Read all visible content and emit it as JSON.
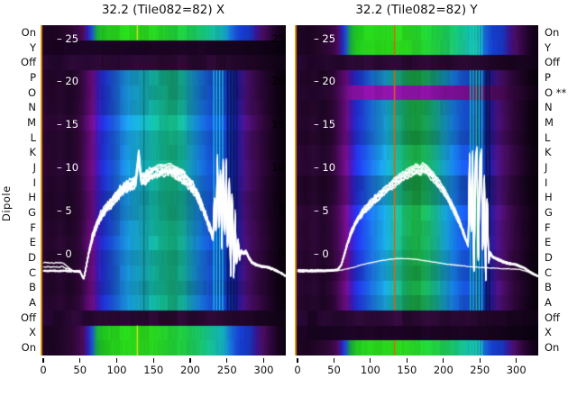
{
  "figure": {
    "titles": {
      "x_panel": "32.2 (Tile082=82) X",
      "y_panel": "32.2 (Tile082=82) Y"
    },
    "y_axis_label": "Dipole",
    "dipole_rows": [
      "On",
      "Y",
      "Off",
      "P",
      "O",
      "N",
      "M",
      "L",
      "K",
      "J",
      "I",
      "H",
      "G",
      "F",
      "E",
      "D",
      "C",
      "B",
      "A",
      "Off",
      "X",
      "On"
    ],
    "right_flag": {
      "row_index": 4,
      "text": "**"
    },
    "x_tick_labels": [
      "0",
      "50",
      "100",
      "150",
      "200",
      "250",
      "300"
    ],
    "x_tick_values": [
      0,
      50,
      100,
      150,
      200,
      250,
      300
    ],
    "inner_db_tick_labels": [
      "– 25",
      "– 20",
      "– 15",
      "– 10",
      "– 5",
      "– 0"
    ],
    "inner_db_tick_values": [
      25,
      20,
      15,
      10,
      5,
      0
    ],
    "left_panel_right_edge_labels": [
      "25",
      "20",
      "15",
      "10",
      "5",
      "0"
    ]
  },
  "colors": {
    "background": "#ffffff",
    "curve_white": "#ffffff",
    "axis_text": "#000000",
    "inner_tick_text": "#ffffff",
    "edge_column_yellow": "#e8a912",
    "edge_column_orange": "#c87a0e"
  },
  "heatmap_palette": {
    "band": [
      [
        0,
        "#2a0633"
      ],
      [
        10,
        "#220529"
      ],
      [
        22,
        "#2c0835"
      ],
      [
        34,
        "#1f0527"
      ],
      [
        46,
        "#2b0733"
      ],
      [
        53,
        "#3c0848"
      ],
      [
        60,
        "#570a6c"
      ],
      [
        67,
        "#6e0d86"
      ],
      [
        73,
        "#3d17b2"
      ],
      [
        81,
        "#2030d6"
      ],
      [
        93,
        "#1b52d8"
      ],
      [
        105,
        "#1a7ad8"
      ],
      [
        119,
        "#18a2dc"
      ],
      [
        133,
        "#16aec8"
      ],
      [
        147,
        "#13b2a4"
      ],
      [
        161,
        "#12b28c"
      ],
      [
        175,
        "#14ae7e"
      ],
      [
        189,
        "#13a890"
      ],
      [
        202,
        "#1494c2"
      ],
      [
        214,
        "#1672d6"
      ],
      [
        226,
        "#1654d4"
      ],
      [
        238,
        "#1848d2"
      ],
      [
        250,
        "#1340c8"
      ],
      [
        258,
        "#122ea8"
      ],
      [
        266,
        "#2a1694"
      ],
      [
        274,
        "#4c1184"
      ],
      [
        284,
        "#440c5e"
      ],
      [
        296,
        "#30073c"
      ],
      [
        308,
        "#1e0426"
      ],
      [
        320,
        "#0f0213"
      ],
      [
        330,
        "#070109"
      ]
    ],
    "band_gc": [
      [
        0,
        "#2a0633"
      ],
      [
        10,
        "#220529"
      ],
      [
        22,
        "#2c0835"
      ],
      [
        34,
        "#1f0527"
      ],
      [
        46,
        "#2b0733"
      ],
      [
        53,
        "#3c0848"
      ],
      [
        60,
        "#570a6c"
      ],
      [
        67,
        "#6e0d86"
      ],
      [
        73,
        "#3d17b2"
      ],
      [
        81,
        "#2030d6"
      ],
      [
        93,
        "#1b52d8"
      ],
      [
        105,
        "#1a7ad8"
      ],
      [
        119,
        "#18a2dc"
      ],
      [
        133,
        "#16ac9a"
      ],
      [
        147,
        "#17a75e"
      ],
      [
        161,
        "#18a33e"
      ],
      [
        175,
        "#17a354"
      ],
      [
        189,
        "#149c80"
      ],
      [
        202,
        "#1494c2"
      ],
      [
        214,
        "#1672d6"
      ],
      [
        226,
        "#1654d4"
      ],
      [
        238,
        "#1848d2"
      ],
      [
        250,
        "#1340c8"
      ],
      [
        258,
        "#122ea8"
      ],
      [
        266,
        "#2a1694"
      ],
      [
        274,
        "#4c1184"
      ],
      [
        284,
        "#440c5e"
      ],
      [
        296,
        "#30073c"
      ],
      [
        308,
        "#1e0426"
      ],
      [
        320,
        "#0f0213"
      ],
      [
        330,
        "#070109"
      ]
    ],
    "green": [
      [
        0,
        "#1e0524"
      ],
      [
        12,
        "#1a0420"
      ],
      [
        26,
        "#230629"
      ],
      [
        38,
        "#2b0732"
      ],
      [
        47,
        "#390846"
      ],
      [
        54,
        "#4c0a5a"
      ],
      [
        60,
        "#2a20b4"
      ],
      [
        66,
        "#1b52c8"
      ],
      [
        72,
        "#17a23e"
      ],
      [
        80,
        "#1fc41e"
      ],
      [
        92,
        "#26d21c"
      ],
      [
        112,
        "#28d81a"
      ],
      [
        132,
        "#2bd91b"
      ],
      [
        152,
        "#28d520"
      ],
      [
        172,
        "#22d030"
      ],
      [
        192,
        "#1ecb44"
      ],
      [
        212,
        "#18c46a"
      ],
      [
        228,
        "#15bc94"
      ],
      [
        244,
        "#14b0c0"
      ],
      [
        256,
        "#1766d8"
      ],
      [
        268,
        "#163cd0"
      ],
      [
        280,
        "#1738c4"
      ],
      [
        290,
        "#3c1490"
      ],
      [
        298,
        "#4a0d62"
      ],
      [
        308,
        "#300740"
      ],
      [
        318,
        "#1a0322"
      ],
      [
        330,
        "#0a0110"
      ]
    ],
    "dark": [
      [
        0,
        "#250730"
      ],
      [
        20,
        "#1e0528"
      ],
      [
        40,
        "#2a0834"
      ],
      [
        60,
        "#23062c"
      ],
      [
        85,
        "#2d0a37"
      ],
      [
        110,
        "#26072f"
      ],
      [
        135,
        "#2e0a38"
      ],
      [
        160,
        "#28082f"
      ],
      [
        185,
        "#2c0a35"
      ],
      [
        210,
        "#25072d"
      ],
      [
        235,
        "#2b0933"
      ],
      [
        260,
        "#23062b"
      ],
      [
        285,
        "#1e0525"
      ],
      [
        305,
        "#17041d"
      ],
      [
        330,
        "#0c0211"
      ]
    ],
    "offdark": [
      [
        0,
        "#1b0322"
      ],
      [
        40,
        "#170320"
      ],
      [
        90,
        "#1d0425"
      ],
      [
        140,
        "#190321"
      ],
      [
        190,
        "#1c0424"
      ],
      [
        240,
        "#180320"
      ],
      [
        280,
        "#14031b"
      ],
      [
        310,
        "#0e0213"
      ],
      [
        330,
        "#07010c"
      ]
    ],
    "magenta": [
      [
        0,
        "#26062e"
      ],
      [
        22,
        "#20052a"
      ],
      [
        42,
        "#2a0733"
      ],
      [
        52,
        "#3c0848"
      ],
      [
        60,
        "#560a66"
      ],
      [
        70,
        "#700e88"
      ],
      [
        82,
        "#8210a0"
      ],
      [
        102,
        "#8c12a6"
      ],
      [
        132,
        "#9014aa"
      ],
      [
        162,
        "#8a12a2"
      ],
      [
        192,
        "#82109a"
      ],
      [
        216,
        "#760e8e"
      ],
      [
        240,
        "#680c7e"
      ],
      [
        262,
        "#560a68"
      ],
      [
        285,
        "#3e0748"
      ],
      [
        305,
        "#28052e"
      ],
      [
        320,
        "#140218"
      ],
      [
        330,
        "#0a0110"
      ]
    ]
  },
  "chart_data": [
    {
      "type": "heatmap",
      "title": "32.2 (Tile082=82) X",
      "polarization": "X",
      "x_range": [
        0,
        330
      ],
      "x_ticks": [
        0,
        50,
        100,
        150,
        200,
        250,
        300
      ],
      "db_ticks": [
        25,
        20,
        15,
        10,
        5,
        0
      ],
      "rows": [
        "On",
        "Y",
        "Off",
        "P",
        "O",
        "N",
        "M",
        "L",
        "K",
        "J",
        "I",
        "H",
        "G",
        "F",
        "E",
        "D",
        "C",
        "B",
        "A",
        "Off",
        "X",
        "On"
      ],
      "row_bands": [
        "green",
        "offdark",
        "dark",
        "band",
        "band",
        "band",
        "band",
        "band",
        "band",
        "band",
        "band",
        "band",
        "band",
        "band",
        "band",
        "band",
        "band",
        "band",
        "band",
        "dark",
        "green",
        "green"
      ],
      "seed": 11,
      "bundle_lines": 7,
      "noise_amp": 0.5,
      "start_offsets": [
        0.85,
        0.4
      ],
      "main_curve_db": [
        [
          0,
          -1.9
        ],
        [
          30,
          -1.9
        ],
        [
          50,
          -2.0
        ],
        [
          55,
          -2.9
        ],
        [
          58,
          -1.6
        ],
        [
          62,
          0.3
        ],
        [
          68,
          2.5
        ],
        [
          74,
          4.0
        ],
        [
          80,
          5.0
        ],
        [
          88,
          6.0
        ],
        [
          96,
          6.8
        ],
        [
          104,
          7.6
        ],
        [
          112,
          8.2
        ],
        [
          120,
          8.6
        ],
        [
          126,
          9.0
        ],
        [
          130,
          12.3
        ],
        [
          133,
          9.2
        ],
        [
          138,
          9.4
        ],
        [
          145,
          9.8
        ],
        [
          152,
          10.1
        ],
        [
          158,
          10.4
        ],
        [
          165,
          10.3
        ],
        [
          172,
          10.5
        ],
        [
          178,
          10.2
        ],
        [
          185,
          9.9
        ],
        [
          192,
          9.4
        ],
        [
          198,
          8.8
        ],
        [
          205,
          8.0
        ],
        [
          212,
          6.8
        ],
        [
          218,
          5.5
        ],
        [
          224,
          4.0
        ],
        [
          228,
          3.0
        ],
        [
          231,
          2.2
        ],
        [
          233,
          7.0
        ],
        [
          235,
          2.5
        ],
        [
          237,
          11.5
        ],
        [
          239,
          3.0
        ],
        [
          241,
          10.5
        ],
        [
          243,
          1.0
        ],
        [
          245,
          12.0
        ],
        [
          247,
          2.0
        ],
        [
          249,
          11.0
        ],
        [
          251,
          0.0
        ],
        [
          253,
          10.0
        ],
        [
          255,
          -2.5
        ],
        [
          257,
          8.0
        ],
        [
          259,
          -3.5
        ],
        [
          261,
          5.0
        ],
        [
          263,
          -1.5
        ],
        [
          265,
          2.0
        ],
        [
          267,
          -0.5
        ],
        [
          269,
          0.5
        ],
        [
          272,
          0.2
        ],
        [
          276,
          0.4
        ],
        [
          280,
          -0.4
        ],
        [
          284,
          -0.9
        ],
        [
          290,
          -1.2
        ],
        [
          298,
          -1.4
        ],
        [
          306,
          -1.5
        ],
        [
          315,
          -1.8
        ],
        [
          324,
          -2.2
        ],
        [
          330,
          -2.6
        ]
      ],
      "vlines": [
        {
          "ch": 128,
          "color": "#cde01a",
          "w": 1.4,
          "rows": "green"
        },
        {
          "ch": 137,
          "color": "rgba(10,40,30,0.4)",
          "w": 1.2,
          "rows": "band"
        },
        {
          "ch": 232,
          "color": "#19cede",
          "w": 1.2,
          "rows": "band"
        },
        {
          "ch": 236,
          "color": "#19cede",
          "w": 1.2,
          "rows": "band"
        },
        {
          "ch": 240,
          "color": "#19cede",
          "w": 1.2,
          "rows": "band"
        },
        {
          "ch": 244,
          "color": "#19cede",
          "w": 1.2,
          "rows": "band"
        },
        {
          "ch": 251,
          "color": "rgba(8,8,70,0.75)",
          "w": 2,
          "rows": "band"
        },
        {
          "ch": 255,
          "color": "rgba(8,8,70,0.75)",
          "w": 2,
          "rows": "band"
        },
        {
          "ch": 259,
          "color": "rgba(8,8,70,0.7)",
          "w": 2,
          "rows": "band"
        },
        {
          "ch": 263,
          "color": "rgba(8,8,70,0.6)",
          "w": 2,
          "rows": "band"
        }
      ]
    },
    {
      "type": "heatmap",
      "title": "32.2 (Tile082=82) Y",
      "polarization": "Y",
      "x_range": [
        0,
        330
      ],
      "x_ticks": [
        0,
        50,
        100,
        150,
        200,
        250,
        300
      ],
      "db_ticks": [
        25,
        20,
        15,
        10,
        5,
        0
      ],
      "rows": [
        "On",
        "Y",
        "Off",
        "P",
        "O",
        "N",
        "M",
        "L",
        "K",
        "J",
        "I",
        "H",
        "G",
        "F",
        "E",
        "D",
        "C",
        "B",
        "A",
        "Off",
        "X",
        "On"
      ],
      "row_bands": [
        "green",
        "green",
        "dark",
        "band",
        "magenta",
        "band",
        "band",
        "band",
        "band",
        "band",
        "band",
        "band",
        "band",
        "band",
        "band",
        "band",
        "band",
        "band",
        "band",
        "dark",
        "offdark",
        "green"
      ],
      "flagged_row": "O",
      "green_center": true,
      "seed": 37,
      "bundle_lines": 6,
      "noise_amp": 0.26,
      "start_offsets": [],
      "main_curve_db": [
        [
          0,
          -1.9
        ],
        [
          40,
          -1.9
        ],
        [
          55,
          -1.8
        ],
        [
          60,
          -1.2
        ],
        [
          64,
          0.0
        ],
        [
          68,
          1.2
        ],
        [
          73,
          2.6
        ],
        [
          78,
          3.6
        ],
        [
          85,
          4.6
        ],
        [
          92,
          5.4
        ],
        [
          100,
          6.2
        ],
        [
          110,
          7.0
        ],
        [
          120,
          7.8
        ],
        [
          130,
          8.5
        ],
        [
          140,
          9.2
        ],
        [
          150,
          9.8
        ],
        [
          158,
          10.2
        ],
        [
          163,
          10.5
        ],
        [
          168,
          10.1
        ],
        [
          172,
          10.6
        ],
        [
          177,
          10.3
        ],
        [
          183,
          9.7
        ],
        [
          190,
          9.0
        ],
        [
          197,
          8.2
        ],
        [
          204,
          7.2
        ],
        [
          210,
          6.2
        ],
        [
          216,
          5.2
        ],
        [
          222,
          4.0
        ],
        [
          227,
          2.8
        ],
        [
          231,
          1.8
        ],
        [
          234,
          1.2
        ],
        [
          236,
          12.8
        ],
        [
          238,
          2.0
        ],
        [
          240,
          12.0
        ],
        [
          242,
          -3.5
        ],
        [
          244,
          11.5
        ],
        [
          246,
          12.5
        ],
        [
          248,
          -2.0
        ],
        [
          250,
          11.0
        ],
        [
          252,
          12.2
        ],
        [
          254,
          -0.5
        ],
        [
          256,
          10.5
        ],
        [
          258,
          -3.0
        ],
        [
          260,
          7.5
        ],
        [
          262,
          -1.0
        ],
        [
          264,
          0.3
        ],
        [
          267,
          -0.2
        ],
        [
          271,
          -0.4
        ],
        [
          276,
          -0.6
        ],
        [
          281,
          -0.8
        ],
        [
          287,
          -1.0
        ],
        [
          295,
          -1.1
        ],
        [
          303,
          -1.3
        ],
        [
          311,
          -1.6
        ],
        [
          318,
          -2.0
        ],
        [
          326,
          -2.4
        ],
        [
          330,
          -2.6
        ]
      ],
      "secondary_curve_db": [
        [
          0,
          -2.1
        ],
        [
          40,
          -2.05
        ],
        [
          60,
          -1.9
        ],
        [
          75,
          -1.6
        ],
        [
          90,
          -1.25
        ],
        [
          105,
          -0.95
        ],
        [
          118,
          -0.75
        ],
        [
          128,
          -0.62
        ],
        [
          138,
          -0.55
        ],
        [
          150,
          -0.55
        ],
        [
          162,
          -0.65
        ],
        [
          175,
          -0.8
        ],
        [
          190,
          -1.0
        ],
        [
          205,
          -1.2
        ],
        [
          220,
          -1.35
        ],
        [
          238,
          -1.5
        ],
        [
          255,
          -1.6
        ],
        [
          272,
          -1.68
        ],
        [
          290,
          -1.75
        ],
        [
          305,
          -1.8
        ],
        [
          315,
          -2.1
        ],
        [
          324,
          -2.45
        ],
        [
          330,
          -2.6
        ]
      ],
      "vlines": [
        {
          "ch": 133,
          "color": "#e25c0e",
          "w": 1.5,
          "rows": "bright"
        },
        {
          "ch": 237,
          "color": "#17d0b0",
          "w": 1.2,
          "rows": "bright"
        },
        {
          "ch": 241,
          "color": "#17d0b0",
          "w": 1.2,
          "rows": "bright"
        },
        {
          "ch": 245,
          "color": "#2ad060",
          "w": 1.2,
          "rows": "bright"
        },
        {
          "ch": 249,
          "color": "#17d0b0",
          "w": 1.2,
          "rows": "bright"
        },
        {
          "ch": 253,
          "color": "#17d0b0",
          "w": 1.2,
          "rows": "bright"
        },
        {
          "ch": 259,
          "color": "rgba(8,8,60,0.75)",
          "w": 2,
          "rows": "band"
        },
        {
          "ch": 263,
          "color": "rgba(8,8,60,0.7)",
          "w": 2,
          "rows": "band"
        }
      ]
    }
  ]
}
